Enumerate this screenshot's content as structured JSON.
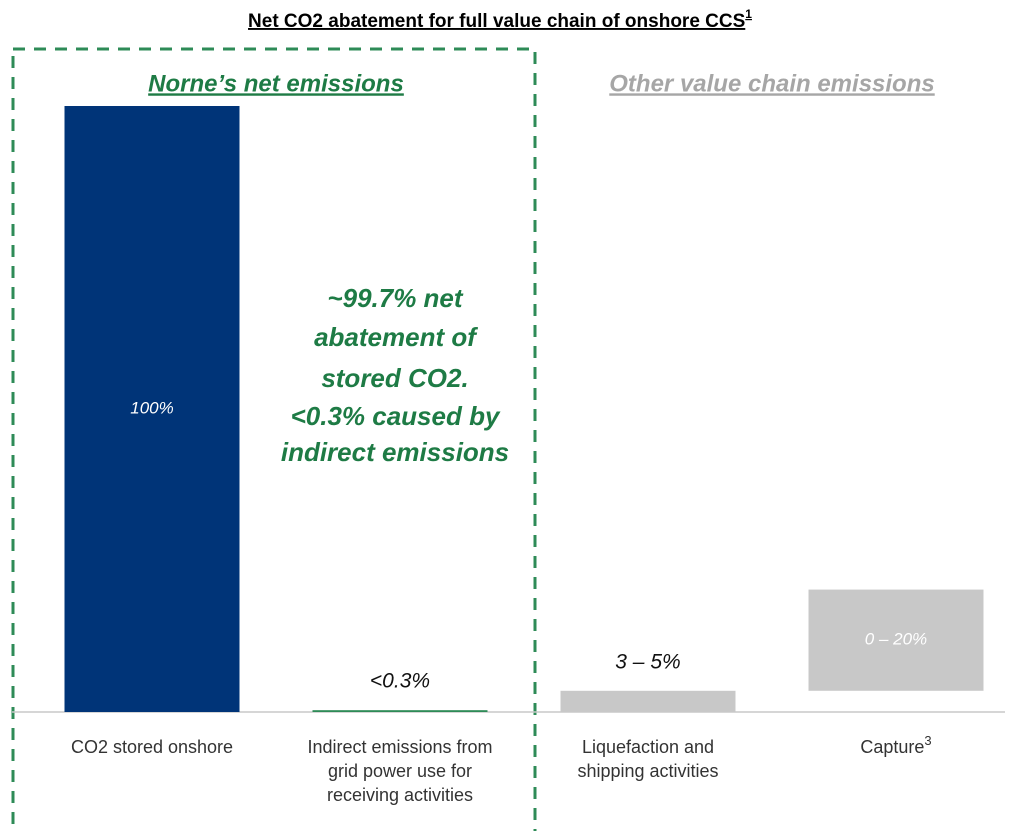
{
  "chart_data": {
    "type": "floating-bar",
    "title": "Net CO2 abatement for full value chain of onshore CCS",
    "title_note": "1",
    "groups": [
      {
        "label": "Norne’s net emissions",
        "color": "#1e7b45",
        "members": [
          0,
          1
        ]
      },
      {
        "label": "Other value chain emissions",
        "color": "#a6a6a6",
        "members": [
          2,
          3
        ]
      }
    ],
    "categories": [
      [
        "CO2 stored onshore"
      ],
      [
        "Indirect emissions from",
        "grid power use for",
        "receiving activities"
      ],
      [
        "Liquefaction and",
        "shipping activities"
      ],
      [
        "Capture"
      ]
    ],
    "category_notes": [
      null,
      null,
      null,
      "3"
    ],
    "values": [
      100,
      0.3,
      3.5,
      16.7
    ],
    "value_labels": [
      "100%",
      "<0.3%",
      "3 – 5%",
      "0 – 20%"
    ],
    "stack_on_previous": [
      false,
      false,
      false,
      true
    ],
    "colors": [
      "#003478",
      "#2e8b57",
      "#c8c8c8",
      "#c8c8c8"
    ],
    "ylim": [
      0,
      100
    ],
    "annotation": [
      "~99.7% net",
      "abatement of",
      "stored CO2.",
      "<0.3% caused by",
      "indirect emissions"
    ]
  }
}
